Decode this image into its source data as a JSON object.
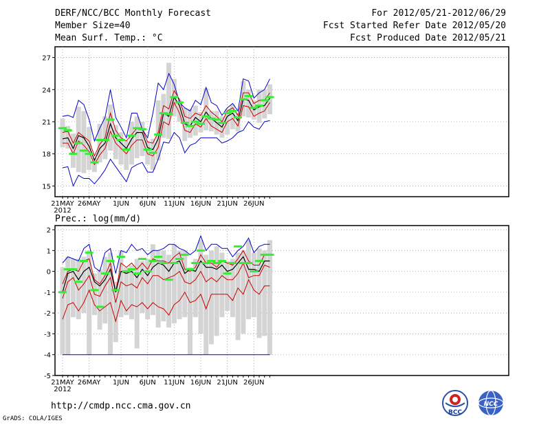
{
  "header": {
    "title": "DERF/NCC/BCC Monthly Forecast",
    "member_size": "Member Size=40",
    "variable": "Mean Surf. Temp.: °C",
    "period": "For 2012/05/21-2012/06/29",
    "refer_date": "Fcst Started Refer Date 2012/05/20",
    "produced_date": "Fcst Produced Date 2012/05/21"
  },
  "prec_label": "Prec.: log(mm/d)",
  "footer": {
    "url": "http://cmdp.ncc.cma.gov.cn",
    "grads": "GrADS: COLA/IGES",
    "logo1": "BCC",
    "logo2": "NCC"
  },
  "colors": {
    "max_min": "#0000cc",
    "percentile": "#cc0000",
    "mean": "#000000",
    "box": "#d4d4d4",
    "observed": "#33ee33"
  },
  "x_labels": [
    "21MAY",
    "26MAY",
    "1JUN",
    "6JUN",
    "11JUN",
    "16JUN",
    "21JUN",
    "26JUN"
  ],
  "x_label_days": [
    0,
    5,
    11,
    16,
    21,
    26,
    31,
    36
  ],
  "year_label": "2012",
  "chart_data": [
    {
      "type": "box",
      "title": "Mean Surf. Temp.: °C",
      "ylim": [
        14,
        28
      ],
      "yticks": [
        15,
        18,
        21,
        24,
        27
      ],
      "days": 40,
      "max": [
        21.5,
        21.6,
        21.4,
        23.0,
        22.6,
        21.2,
        19.2,
        20.4,
        21.4,
        24.0,
        21.4,
        20.5,
        19.5,
        21.8,
        21.8,
        20.3,
        19.5,
        21.8,
        24.6,
        24.0,
        25.5,
        24.5,
        22.8,
        22.3,
        22.0,
        23.0,
        22.6,
        24.2,
        22.8,
        22.5,
        21.6,
        22.3,
        22.7,
        22.0,
        25.0,
        24.8,
        23.2,
        23.7,
        24.0,
        25.0
      ],
      "upper": [
        20.0,
        20.1,
        19.0,
        20.0,
        19.6,
        19.2,
        17.8,
        18.9,
        19.5,
        21.8,
        20.2,
        19.5,
        19.2,
        19.8,
        20.4,
        20.3,
        19.1,
        19.0,
        20.0,
        22.5,
        22.2,
        23.9,
        23.1,
        21.5,
        21.3,
        21.8,
        21.6,
        22.5,
        21.9,
        21.5,
        21.0,
        22.0,
        22.3,
        21.6,
        23.7,
        23.7,
        22.7,
        23.0,
        23.0,
        23.7
      ],
      "mean": [
        19.4,
        19.5,
        18.5,
        19.7,
        19.5,
        18.7,
        17.4,
        18.5,
        19.0,
        20.8,
        19.5,
        19.0,
        18.5,
        19.4,
        20.0,
        20.0,
        18.6,
        18.4,
        19.4,
        21.8,
        21.5,
        23.3,
        22.5,
        20.8,
        20.6,
        21.4,
        21.0,
        21.9,
        21.3,
        20.9,
        20.5,
        21.5,
        21.8,
        21.1,
        23.1,
        23.0,
        22.1,
        22.4,
        22.5,
        23.2
      ],
      "lower": [
        19.0,
        19.0,
        18.0,
        19.2,
        18.8,
        18.2,
        17.0,
        17.9,
        18.5,
        20.1,
        19.0,
        18.5,
        18.0,
        18.8,
        19.3,
        19.3,
        18.0,
        17.8,
        18.6,
        21.0,
        20.7,
        22.8,
        21.8,
        20.2,
        20.0,
        20.8,
        20.5,
        21.3,
        20.6,
        20.3,
        20.0,
        21.0,
        21.3,
        20.6,
        22.5,
        22.4,
        21.5,
        21.8,
        22.0,
        22.8
      ],
      "min": [
        16.7,
        16.8,
        15.0,
        16.0,
        15.7,
        15.7,
        15.2,
        15.8,
        16.5,
        17.5,
        16.8,
        16.1,
        15.4,
        16.7,
        17.0,
        17.2,
        16.3,
        16.3,
        17.5,
        19.1,
        19.0,
        20.0,
        19.5,
        18.1,
        18.8,
        19.0,
        19.5,
        19.5,
        19.5,
        19.5,
        19.0,
        19.2,
        19.5,
        20.0,
        20.2,
        21.0,
        20.5,
        20.3,
        21.0,
        21.1
      ],
      "box_top": [
        21.3,
        20.6,
        19.9,
        22.4,
        22.0,
        20.5,
        17.6,
        20.8,
        21.5,
        22.6,
        20.7,
        20.0,
        19.2,
        21.0,
        21.5,
        21.0,
        19.2,
        19.4,
        23.0,
        23.6,
        26.5,
        25.0,
        23.0,
        22.3,
        22.2,
        22.5,
        21.9,
        24.1,
        22.0,
        22.0,
        21.5,
        22.2,
        22.6,
        21.8,
        24.8,
        24.0,
        23.0,
        24.0,
        24.0,
        24.5
      ],
      "box_bottom": [
        18.6,
        18.5,
        16.7,
        16.3,
        16.2,
        16.5,
        16.3,
        17.2,
        17.5,
        18.3,
        17.5,
        17.0,
        16.5,
        17.0,
        17.6,
        17.8,
        17.0,
        16.5,
        17.4,
        19.5,
        19.4,
        21.5,
        21.0,
        19.2,
        19.5,
        19.7,
        20.0,
        20.2,
        20.1,
        19.8,
        19.5,
        19.8,
        20.3,
        20.1,
        21.5,
        21.4,
        21.2,
        20.9,
        21.3,
        21.7
      ],
      "observed": [
        20.4,
        20.2,
        18.0,
        19.0,
        18.3,
        18.0,
        17.2,
        19.3,
        19.3,
        21.2,
        19.7,
        19.3,
        18.4,
        19.7,
        20.4,
        20.3,
        18.4,
        18.1,
        19.8,
        21.8,
        21.7,
        23.3,
        22.8,
        20.9,
        20.6,
        21.0,
        20.8,
        21.5,
        21.3,
        21.2,
        20.9,
        21.8,
        22.0,
        21.4,
        23.1,
        23.4,
        22.3,
        22.5,
        23.0,
        23.3
      ]
    },
    {
      "type": "box",
      "title": "Prec.: log(mm/d)",
      "ylim": [
        -5,
        2.2
      ],
      "yticks": [
        -5,
        -4,
        -3,
        -2,
        -1,
        0,
        1,
        2
      ],
      "days": 40,
      "max": [
        0.4,
        0.7,
        0.6,
        0.5,
        1.1,
        1.3,
        0.2,
        0.0,
        0.9,
        1.1,
        -0.1,
        1.0,
        0.9,
        1.3,
        1.0,
        1.1,
        0.8,
        1.0,
        1.0,
        1.1,
        1.3,
        1.3,
        1.1,
        1.0,
        0.8,
        1.0,
        1.7,
        1.0,
        1.3,
        1.3,
        1.1,
        1.1,
        0.7,
        1.0,
        1.2,
        1.6,
        0.9,
        1.2,
        1.3,
        1.3
      ],
      "upper": [
        -0.6,
        0.0,
        0.1,
        0.0,
        0.5,
        0.6,
        -0.4,
        -0.6,
        -0.2,
        0.4,
        -1.0,
        0.4,
        0.2,
        0.4,
        0.1,
        0.4,
        0.1,
        0.6,
        0.5,
        0.5,
        0.4,
        0.7,
        0.9,
        0.1,
        0.0,
        0.2,
        0.8,
        0.4,
        0.4,
        0.2,
        0.5,
        0.4,
        0.3,
        0.6,
        1.0,
        0.5,
        0.3,
        0.3,
        0.8,
        0.8
      ],
      "mean": [
        -1.0,
        -0.1,
        0.0,
        -0.4,
        0.0,
        0.2,
        -0.5,
        -0.7,
        -0.4,
        0.1,
        -1.0,
        0.0,
        -0.1,
        0.0,
        -0.3,
        0.1,
        -0.2,
        0.2,
        0.4,
        0.3,
        0.0,
        0.4,
        0.5,
        -0.1,
        0.1,
        0.0,
        0.5,
        0.2,
        0.2,
        0.1,
        0.3,
        0.0,
        0.1,
        0.4,
        0.7,
        0.1,
        0.1,
        0.0,
        0.5,
        0.5
      ],
      "lower": [
        -1.3,
        -0.5,
        -0.3,
        -0.9,
        -0.6,
        -0.2,
        -1.1,
        -1.2,
        -0.7,
        -0.3,
        -1.5,
        -0.5,
        -0.7,
        -0.6,
        -0.8,
        -0.3,
        -0.6,
        -0.2,
        -0.2,
        -0.4,
        -0.3,
        -0.2,
        0.0,
        -0.5,
        -0.6,
        -0.4,
        0.0,
        -0.5,
        -0.3,
        -0.5,
        -0.2,
        -0.4,
        -0.4,
        -0.1,
        0.4,
        -0.3,
        -0.2,
        -0.2,
        0.3,
        0.2
      ],
      "min": [
        -4.0,
        -4.0,
        -4.0,
        -4.0,
        -4.0,
        -4.0,
        -4.0,
        -4.0,
        -4.0,
        -4.0,
        -4.0,
        -4.0,
        -4.0,
        -4.0,
        -4.0,
        -4.0,
        -4.0,
        -4.0,
        -4.0,
        -4.0,
        -4.0,
        -4.0,
        -4.0,
        -4.0,
        -4.0,
        -4.0,
        -4.0,
        -4.0,
        -4.0,
        -4.0,
        -4.0,
        -4.0,
        -4.0,
        -4.0,
        -4.0,
        -4.0,
        -4.0,
        -4.0,
        -4.0,
        -4.0
      ],
      "p10": [
        -2.3,
        -1.6,
        -1.5,
        -1.9,
        -1.5,
        -0.9,
        -1.6,
        -1.9,
        -1.7,
        -1.5,
        -2.4,
        -1.4,
        -1.9,
        -1.6,
        -1.7,
        -1.5,
        -1.8,
        -1.5,
        -1.7,
        -1.8,
        -2.1,
        -1.6,
        -1.4,
        -1.0,
        -1.5,
        -1.4,
        -1.1,
        -1.8,
        -1.1,
        -1.1,
        -1.1,
        -1.1,
        -1.4,
        -0.8,
        -1.1,
        -0.4,
        -0.9,
        -1.1,
        -0.7,
        -0.7
      ],
      "box_top": [
        0.2,
        0.7,
        0.6,
        0.6,
        0.7,
        1.0,
        -0.1,
        0.1,
        0.7,
        0.9,
        -0.5,
        1.0,
        0.2,
        0.3,
        0.6,
        0.5,
        0.6,
        1.3,
        1.0,
        1.0,
        0.8,
        1.3,
        1.0,
        1.0,
        0.2,
        0.6,
        1.5,
        0.8,
        1.0,
        1.2,
        0.9,
        0.5,
        0.6,
        0.9,
        1.0,
        1.5,
        0.9,
        1.1,
        1.0,
        1.5
      ],
      "box_bottom": [
        -4.0,
        -4.0,
        -2.2,
        -2.3,
        -2.0,
        -4.0,
        -2.1,
        -2.8,
        -2.5,
        -4.0,
        -3.4,
        -2.2,
        -2.1,
        -2.3,
        -3.7,
        -2.0,
        -2.3,
        -2.1,
        -2.7,
        -2.4,
        -2.7,
        -2.5,
        -2.3,
        -2.2,
        -4.0,
        -2.2,
        -3.0,
        -4.0,
        -3.5,
        -3.1,
        -2.2,
        -1.9,
        -2.2,
        -3.3,
        -3.0,
        -2.3,
        -2.2,
        -3.2,
        -3.1,
        -4.0
      ],
      "observed": [
        -1.0,
        0.1,
        0.1,
        -0.5,
        0.5,
        0.9,
        -0.9,
        -1.7,
        -0.1,
        0.5,
        -0.9,
        0.7,
        0.0,
        0.1,
        -0.1,
        0.6,
        0.0,
        0.5,
        0.7,
        0.4,
        -0.4,
        0.4,
        0.6,
        0.8,
        0.1,
        0.4,
        1.0,
        0.4,
        0.5,
        0.4,
        0.5,
        -0.1,
        0.4,
        1.2,
        0.4,
        0.4,
        0.0,
        0.5,
        0.8,
        0.8
      ]
    }
  ]
}
